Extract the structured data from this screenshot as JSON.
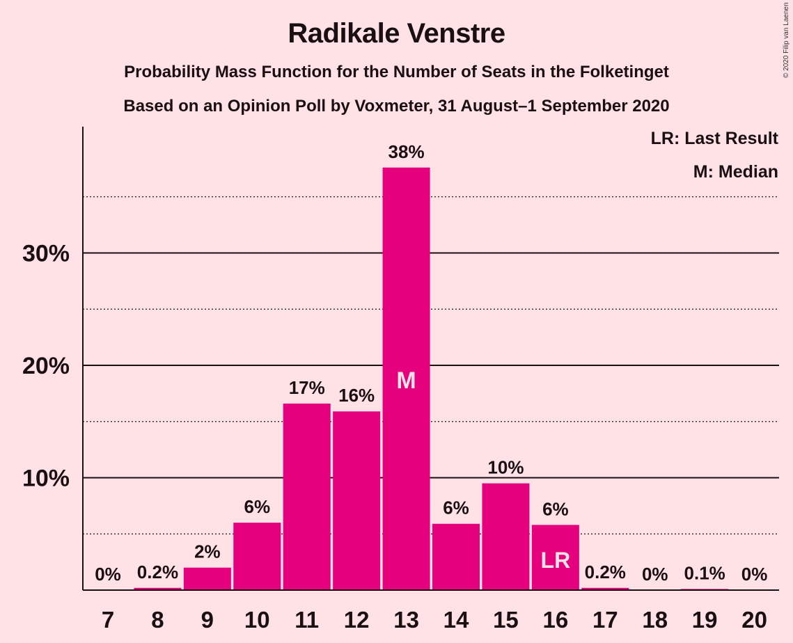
{
  "chart_data": {
    "type": "bar",
    "title": "Radikale Venstre",
    "subtitle": "Probability Mass Function for the Number of Seats in the Folketinget",
    "subtitle2": "Based on an Opinion Poll by Voxmeter, 31 August–1 September 2020",
    "copyright": "© 2020 Filip van Laenen",
    "categories": [
      "7",
      "8",
      "9",
      "10",
      "11",
      "12",
      "13",
      "14",
      "15",
      "16",
      "17",
      "18",
      "19",
      "20"
    ],
    "values": [
      0,
      0.2,
      2,
      6,
      16.6,
      15.9,
      37.6,
      5.9,
      9.5,
      5.8,
      0.2,
      0,
      0.1,
      0
    ],
    "value_labels": [
      "0%",
      "0.2%",
      "2%",
      "6%",
      "17%",
      "16%",
      "38%",
      "6%",
      "10%",
      "6%",
      "0.2%",
      "0%",
      "0.1%",
      "0%"
    ],
    "y_ticks": [
      {
        "value": 10,
        "label": "10%"
      },
      {
        "value": 20,
        "label": "20%"
      },
      {
        "value": 30,
        "label": "30%"
      }
    ],
    "minor_gridlines": [
      5,
      15,
      25,
      35
    ],
    "ylim": [
      0,
      40
    ],
    "median": {
      "category": "13",
      "label": "M"
    },
    "last_result": {
      "category": "16",
      "label": "LR"
    },
    "legend": {
      "lr": "LR: Last Result",
      "m": "M: Median",
      "placement": "top-right"
    },
    "colors": {
      "bar": "#E5007D",
      "background": "#FFE2E6",
      "text": "#1a0f12",
      "bar_marker_text": "#FFE2E6"
    }
  }
}
